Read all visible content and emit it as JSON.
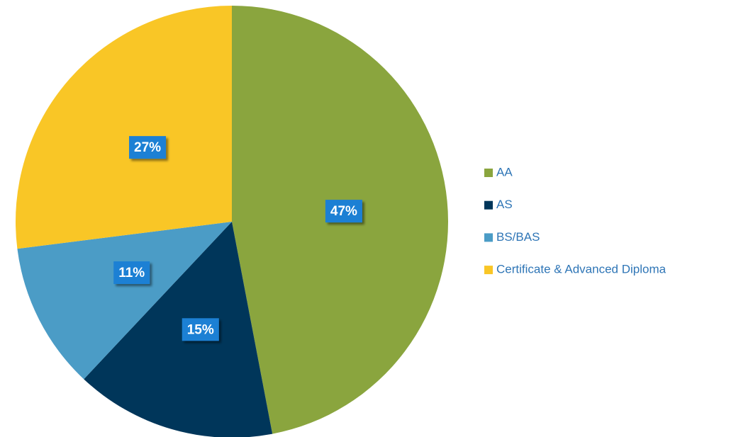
{
  "chart_data": {
    "type": "pie",
    "categories": [
      "AA",
      "AS",
      "BS/BAS",
      "Certificate & Advanced Diploma"
    ],
    "values": [
      47,
      15,
      11,
      27
    ],
    "value_labels": [
      "47%",
      "15%",
      "11%",
      "27%"
    ],
    "colors": [
      "#8aa53e",
      "#00365a",
      "#4b9cc6",
      "#f9c626"
    ],
    "legend": "right"
  }
}
